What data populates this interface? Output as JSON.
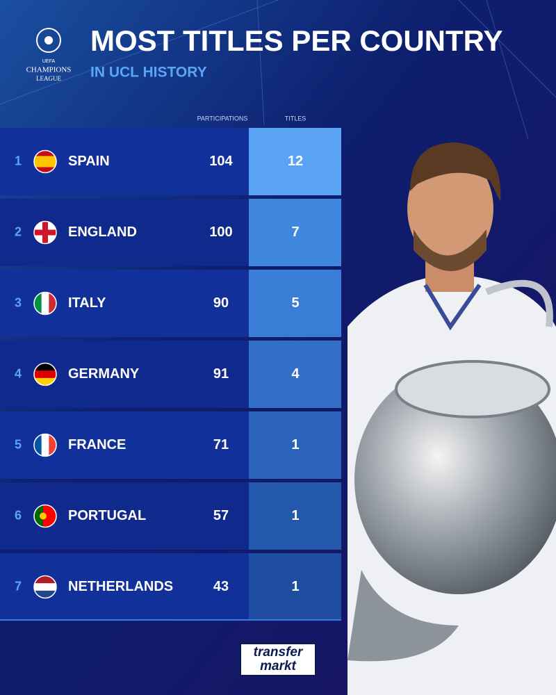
{
  "logo": {
    "line1": "UEFA",
    "line2": "CHAMPIONS",
    "line3": "LEAGUE"
  },
  "header": {
    "title": "MOST TITLES PER COUNTRY",
    "subtitle": "IN UCL HISTORY"
  },
  "table": {
    "columns": [
      "PARTICIPATIONS",
      "TITLES"
    ],
    "rows": [
      [
        1,
        "SPAIN",
        104,
        12
      ],
      [
        2,
        "ENGLAND",
        100,
        7
      ],
      [
        3,
        "ITALY",
        90,
        5
      ],
      [
        4,
        "GERMANY",
        91,
        4
      ],
      [
        5,
        "FRANCE",
        71,
        1
      ],
      [
        6,
        "PORTUGAL",
        57,
        1
      ],
      [
        7,
        "NETHERLANDS",
        43,
        1
      ]
    ]
  },
  "footer": {
    "brand_top": "transfer",
    "brand_bottom": "markt"
  }
}
